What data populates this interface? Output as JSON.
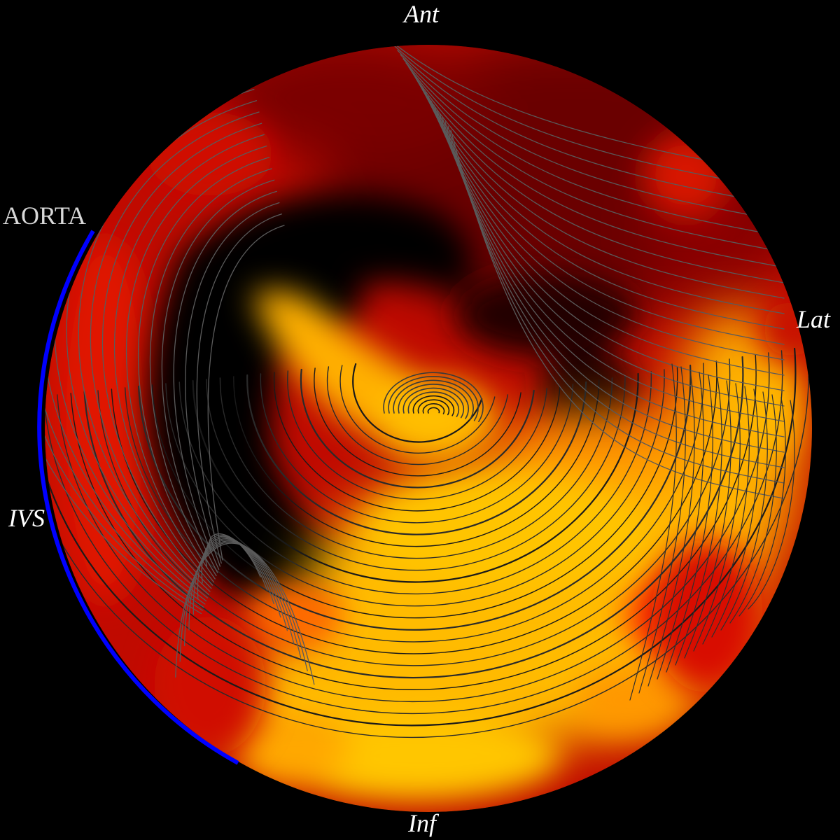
{
  "labels": {
    "anterior": "Ant",
    "lateral": "Lat",
    "septal": "IVS",
    "inferior": "Inf",
    "aorta": "AORTA"
  },
  "colors": {
    "background": "#000000",
    "low": "#000000",
    "mid_dark": "#7a0000",
    "mid": "#e01000",
    "high": "#ffb000",
    "max": "#ffc600",
    "streamline_dark": "#1a1a1a",
    "streamline_light": "#5a5a5a",
    "aorta_marker": "#0000ff",
    "label_text": "#ffffff"
  },
  "map": {
    "type": "polar-bullseye",
    "overlay": "streamlines",
    "aorta_marker_range_deg": [
      148,
      233
    ]
  }
}
